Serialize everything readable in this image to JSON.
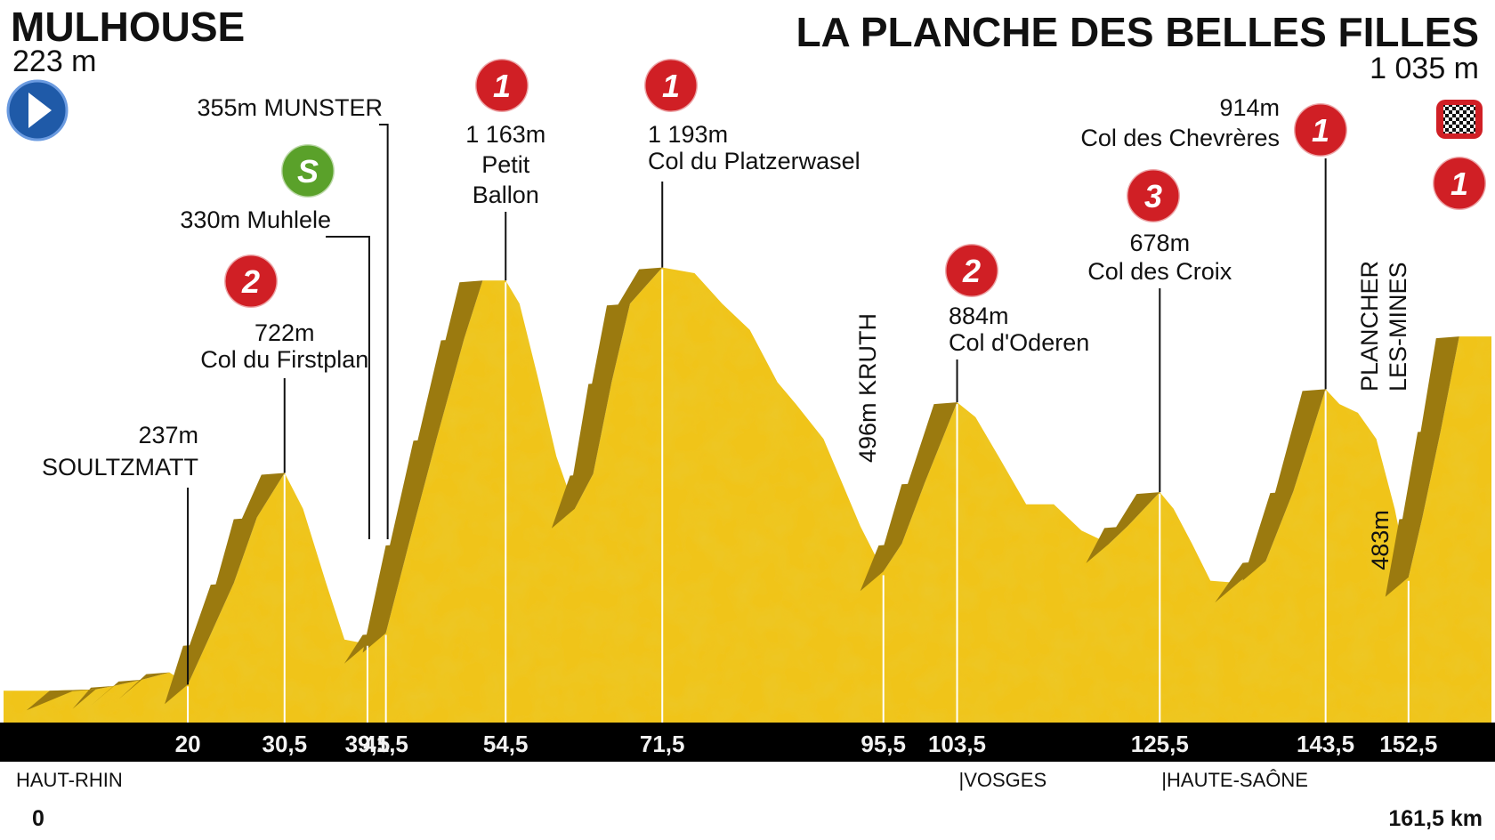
{
  "header": {
    "start_name": "MULHOUSE",
    "start_alt": "223 m",
    "finish_name": "LA PLANCHE DES BELLES FILLES",
    "finish_alt": "1 035 m"
  },
  "colors": {
    "profile_fill": "#f0c419",
    "profile_shade": "#e2b010",
    "climb_band": "#9b7a0f",
    "axis_bar": "#000000",
    "axis_text": "#f2f2f2",
    "cat_badge": "#d01f25",
    "sprint_badge": "#5aa12a",
    "start_badge": "#1f5aa8"
  },
  "icons": {
    "start": "play-arrow-icon",
    "finish": "checkered-flag-icon",
    "sprint": "sprint-s-icon",
    "category": "mountain-category-icon"
  },
  "chart_data": {
    "type": "area",
    "title": "",
    "xlabel": "",
    "ylabel": "",
    "x_unit": "km",
    "xlim": [
      0,
      161.5
    ],
    "ylim": [
      150,
      1235
    ],
    "profile_km": [
      0,
      5,
      10,
      12,
      15,
      18,
      20,
      22,
      25,
      27.5,
      30.5,
      32.5,
      35,
      37,
      39.5,
      41.5,
      44,
      47,
      50,
      52,
      54.5,
      56,
      58,
      60,
      62,
      64,
      66,
      68,
      71.5,
      75,
      78,
      81,
      84,
      86,
      89,
      91,
      93,
      95.5,
      97.5,
      100,
      103.5,
      105.5,
      108,
      111,
      114,
      117,
      120,
      122,
      125.5,
      127,
      129,
      131,
      134,
      137,
      140,
      143.5,
      145,
      147,
      149,
      151,
      152.5,
      154,
      156,
      158,
      161.5
    ],
    "profile_alt": [
      223,
      223,
      226,
      234,
      248,
      265,
      237,
      330,
      470,
      620,
      722,
      640,
      470,
      340,
      330,
      355,
      560,
      800,
      1030,
      1163,
      1163,
      1110,
      940,
      760,
      640,
      720,
      930,
      1110,
      1193,
      1180,
      1110,
      1050,
      930,
      880,
      800,
      700,
      600,
      496,
      560,
      700,
      884,
      850,
      760,
      650,
      650,
      590,
      560,
      600,
      678,
      640,
      560,
      475,
      470,
      520,
      680,
      914,
      880,
      860,
      800,
      640,
      483,
      620,
      820,
      1035,
      1035
    ],
    "x_ticks": [
      {
        "km": 20,
        "label": "20"
      },
      {
        "km": 30.5,
        "label": "30,5"
      },
      {
        "km": 39.5,
        "label": "39,5"
      },
      {
        "km": 41.5,
        "label": "41,5"
      },
      {
        "km": 54.5,
        "label": "54,5"
      },
      {
        "km": 71.5,
        "label": "71,5"
      },
      {
        "km": 95.5,
        "label": "95,5"
      },
      {
        "km": 103.5,
        "label": "103,5"
      },
      {
        "km": 125.5,
        "label": "125,5"
      },
      {
        "km": 143.5,
        "label": "143,5"
      },
      {
        "km": 152.5,
        "label": "152,5"
      }
    ],
    "points": [
      {
        "km": 20,
        "alt": 237,
        "alt_label": "237m",
        "name": "SOULTZMATT"
      },
      {
        "km": 30.5,
        "alt": 722,
        "alt_label": "722m",
        "name": "Col du Firstplan",
        "category": "2"
      },
      {
        "km": 39.5,
        "alt": 330,
        "alt_label": "330m",
        "name": "Muhlele",
        "sprint": "S"
      },
      {
        "km": 41.5,
        "alt": 355,
        "alt_label": "355m",
        "name": "MUNSTER"
      },
      {
        "km": 54.5,
        "alt": 1163,
        "alt_label": "1 163m",
        "name_lines": [
          "Petit",
          "Ballon"
        ],
        "category": "1"
      },
      {
        "km": 71.5,
        "alt": 1193,
        "alt_label": "1 193m",
        "name": "Col du Platzerwasel",
        "category": "1"
      },
      {
        "km": 95.5,
        "alt": 496,
        "alt_label": "496m",
        "name": "KRUTH"
      },
      {
        "km": 103.5,
        "alt": 884,
        "alt_label": "884m",
        "name": "Col d'Oderen",
        "category": "2"
      },
      {
        "km": 125.5,
        "alt": 678,
        "alt_label": "678m",
        "name": "Col des Croix",
        "category": "3"
      },
      {
        "km": 143.5,
        "alt": 914,
        "alt_label": "914m",
        "name": "Col des Chevrères",
        "category": "1"
      },
      {
        "km": 152.5,
        "alt": 483,
        "alt_label": "483m",
        "name_lines": [
          "PLANCHER",
          "LES-MINES"
        ]
      },
      {
        "km": 161.5,
        "alt": 1035,
        "category": "1",
        "finish": true
      }
    ],
    "departments": [
      {
        "km": 0,
        "name": "HAUT-RHIN"
      },
      {
        "km": 103.5,
        "name": "|VOSGES"
      },
      {
        "km": 125.5,
        "name": "|HAUTE-SAÔNE"
      }
    ],
    "start_km_label": "0",
    "end_km_label": "161,5 km"
  }
}
